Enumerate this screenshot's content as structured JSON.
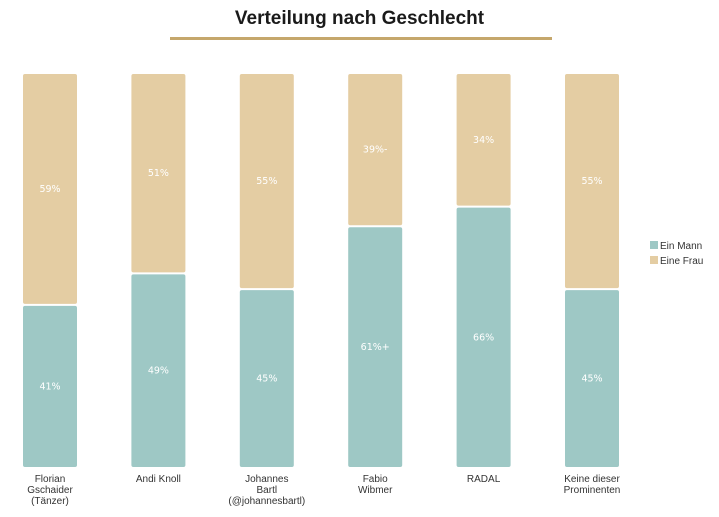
{
  "chart_data": {
    "type": "bar",
    "stacked": true,
    "percent": true,
    "title": "Verteilung nach Geschlecht",
    "categories": [
      [
        "Florian",
        "Gschaider",
        "(Tänzer)"
      ],
      [
        "Andi Knoll"
      ],
      [
        "Johannes",
        "Bartl",
        "(@johannesbartl)"
      ],
      [
        "Fabio",
        "Wibmer"
      ],
      [
        "RADAL"
      ],
      [
        "Keine dieser",
        "Prominenten"
      ]
    ],
    "series": [
      {
        "name": "Ein Mann",
        "color": "#9ec8c5",
        "values": [
          41,
          49,
          45,
          61,
          66,
          45
        ],
        "labels": [
          "41%",
          "49%",
          "45%",
          "61%+",
          "66%",
          "45%"
        ]
      },
      {
        "name": "Eine Frau",
        "color": "#e4cda3",
        "values": [
          59,
          51,
          55,
          39,
          34,
          55
        ],
        "labels": [
          "59%",
          "51%",
          "55%",
          "39%-",
          "34%",
          "55%"
        ]
      }
    ],
    "ylim": [
      0,
      100
    ],
    "legend": "right",
    "grid": false
  }
}
